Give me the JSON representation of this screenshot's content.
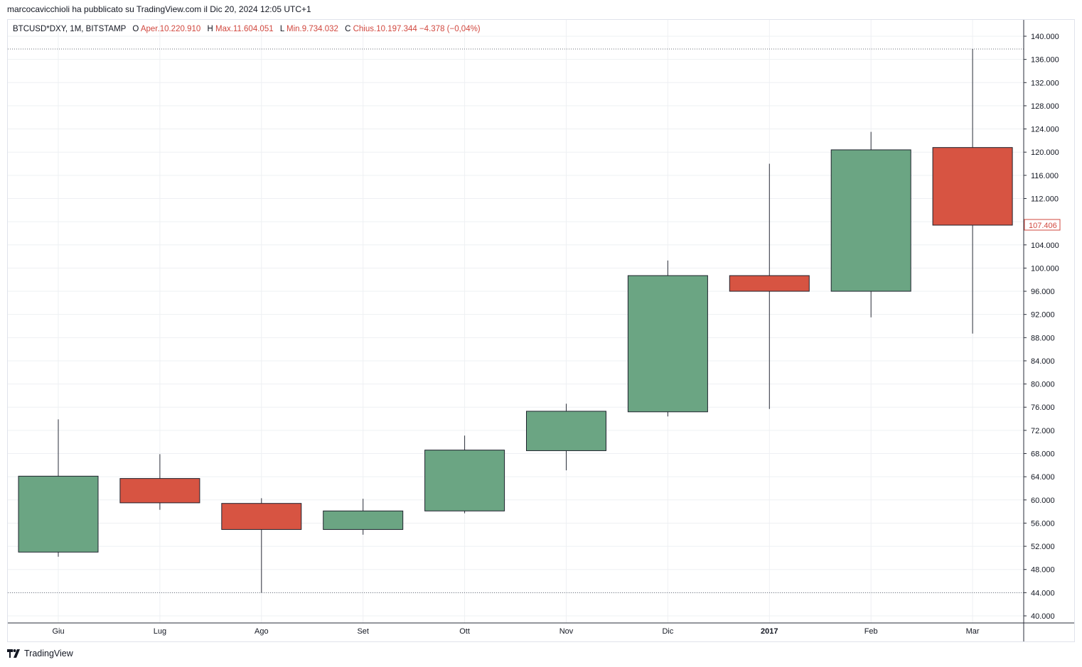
{
  "header": {
    "publisher_text": "marcocavicchioli ha pubblicato su TradingView.com il Dic 20, 2024 12:05 UTC+1"
  },
  "symbol_line": {
    "symbol": "BTCUSD*DXY, 1M, BITSTAMP",
    "open_label": "O",
    "open_value": "Aper.10.220.910",
    "high_label": "H",
    "high_value": "Max.11.604.051",
    "low_label": "L",
    "low_value": "Min.9.734.032",
    "close_label": "C",
    "close_value": "Chius.10.197.344",
    "change_value": "−4.378 (−0,04%)"
  },
  "footer": {
    "brand": "TradingView",
    "logo_icon": "tradingview-logo-icon"
  },
  "colors": {
    "up": "#6ba583",
    "down": "#d75442",
    "grid": "#eef0f3",
    "axis_text": "#131722",
    "price_tag": "#d1483f"
  },
  "chart_data": {
    "type": "candlestick",
    "title": "BTCUSD*DXY, 1M, BITSTAMP",
    "ylim": [
      38000,
      142000
    ],
    "y_ticks": [
      {
        "value": 140000,
        "label": "140.000"
      },
      {
        "value": 136000,
        "label": "136.000"
      },
      {
        "value": 132000,
        "label": "132.000"
      },
      {
        "value": 128000,
        "label": "128.000"
      },
      {
        "value": 124000,
        "label": "124.000"
      },
      {
        "value": 120000,
        "label": "120.000"
      },
      {
        "value": 116000,
        "label": "116.000"
      },
      {
        "value": 112000,
        "label": "112.000"
      },
      {
        "value": 104000,
        "label": "104.000"
      },
      {
        "value": 100000,
        "label": "100.000"
      },
      {
        "value": 96000,
        "label": "96.000"
      },
      {
        "value": 92000,
        "label": "92.000"
      },
      {
        "value": 88000,
        "label": "88.000"
      },
      {
        "value": 84000,
        "label": "84.000"
      },
      {
        "value": 80000,
        "label": "80.000"
      },
      {
        "value": 76000,
        "label": "76.000"
      },
      {
        "value": 72000,
        "label": "72.000"
      },
      {
        "value": 68000,
        "label": "68.000"
      },
      {
        "value": 64000,
        "label": "64.000"
      },
      {
        "value": 60000,
        "label": "60.000"
      },
      {
        "value": 56000,
        "label": "56.000"
      },
      {
        "value": 52000,
        "label": "52.000"
      },
      {
        "value": 48000,
        "label": "48.000"
      },
      {
        "value": 44000,
        "label": "44.000"
      },
      {
        "value": 40000,
        "label": "40.000"
      }
    ],
    "x_labels": [
      {
        "label": "Giu",
        "bold": false
      },
      {
        "label": "Lug",
        "bold": false
      },
      {
        "label": "Ago",
        "bold": false
      },
      {
        "label": "Set",
        "bold": false
      },
      {
        "label": "Ott",
        "bold": false
      },
      {
        "label": "Nov",
        "bold": false
      },
      {
        "label": "Dic",
        "bold": false
      },
      {
        "label": "2017",
        "bold": true
      },
      {
        "label": "Feb",
        "bold": false
      },
      {
        "label": "Mar",
        "bold": false
      }
    ],
    "candles": [
      {
        "open": 51000,
        "high": 73900,
        "low": 50200,
        "close": 64100
      },
      {
        "open": 63700,
        "high": 67900,
        "low": 58300,
        "close": 59500
      },
      {
        "open": 59400,
        "high": 60300,
        "low": 44000,
        "close": 54900
      },
      {
        "open": 54900,
        "high": 60200,
        "low": 54000,
        "close": 58100
      },
      {
        "open": 58100,
        "high": 71100,
        "low": 57700,
        "close": 68600
      },
      {
        "open": 68500,
        "high": 76600,
        "low": 65100,
        "close": 75300
      },
      {
        "open": 75200,
        "high": 101300,
        "low": 74400,
        "close": 98700
      },
      {
        "open": 98700,
        "high": 118000,
        "low": 75700,
        "close": 96000
      },
      {
        "open": 96000,
        "high": 123500,
        "low": 91500,
        "close": 120400
      },
      {
        "open": 120800,
        "high": 137800,
        "low": 88700,
        "close": 107406
      }
    ],
    "last_price_label": "107.406",
    "dotted_levels": [
      137800,
      44000
    ]
  }
}
